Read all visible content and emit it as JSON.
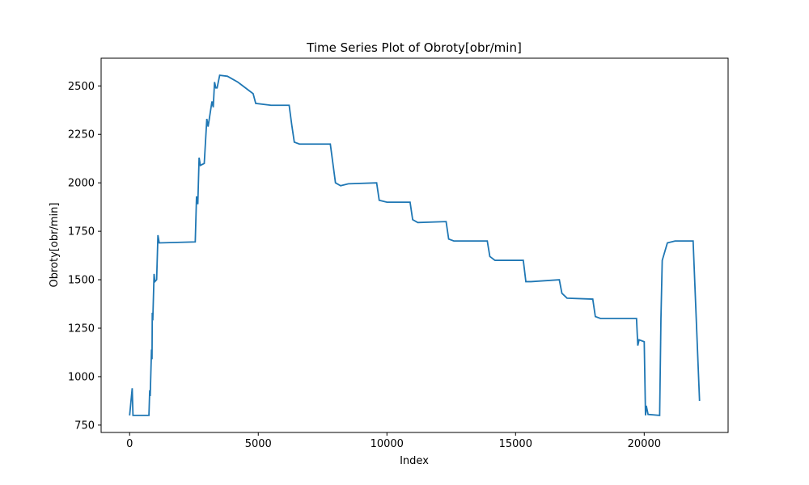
{
  "chart_data": {
    "type": "line",
    "title": "Time Series Plot of Obroty[obr/min]",
    "xlabel": "Index",
    "ylabel": "Obroty[obr/min]",
    "x": [
      0,
      100,
      130,
      750,
      780,
      800,
      850,
      870,
      880,
      900,
      950,
      980,
      1050,
      1100,
      1150,
      2550,
      2600,
      2650,
      2700,
      2750,
      2900,
      3000,
      3050,
      3200,
      3250,
      3300,
      3350,
      3400,
      3500,
      3800,
      4200,
      4250,
      4300,
      4700,
      4800,
      4900,
      5500,
      6200,
      6300,
      6400,
      6600,
      7800,
      7900,
      8000,
      8200,
      8500,
      9600,
      9700,
      10000,
      10900,
      11000,
      11200,
      12300,
      12400,
      12600,
      13900,
      14000,
      14200,
      15300,
      15400,
      15600,
      16700,
      16800,
      17000,
      18000,
      18100,
      18300,
      19700,
      19750,
      19800,
      20000,
      20050,
      20080,
      20150,
      20600,
      20650,
      20700,
      20900,
      21200,
      21900,
      22150
    ],
    "series": [
      {
        "name": "Obroty[obr/min]",
        "color": "#1f77b4",
        "values": [
          800,
          940,
          800,
          800,
          930,
          900,
          1140,
          1090,
          1330,
          1290,
          1530,
          1490,
          1500,
          1730,
          1690,
          1695,
          1930,
          1890,
          2130,
          2090,
          2100,
          2330,
          2290,
          2420,
          2390,
          2520,
          2490,
          2490,
          2555,
          2550,
          2520,
          2515,
          2510,
          2470,
          2460,
          2410,
          2400,
          2400,
          2300,
          2210,
          2200,
          2200,
          2100,
          2000,
          1985,
          1995,
          2000,
          1910,
          1900,
          1900,
          1810,
          1795,
          1800,
          1710,
          1700,
          1700,
          1620,
          1600,
          1600,
          1490,
          1490,
          1500,
          1430,
          1405,
          1400,
          1310,
          1300,
          1300,
          1160,
          1190,
          1180,
          800,
          850,
          805,
          800,
          1300,
          1600,
          1690,
          1700,
          1700,
          875
        ]
      }
    ],
    "xlim": [
      -1108,
      23260
    ],
    "ylim": [
      712,
      2643
    ],
    "xticks": [
      0,
      5000,
      10000,
      15000,
      20000
    ],
    "yticks": [
      750,
      1000,
      1250,
      1500,
      1750,
      2000,
      2250,
      2500
    ]
  }
}
